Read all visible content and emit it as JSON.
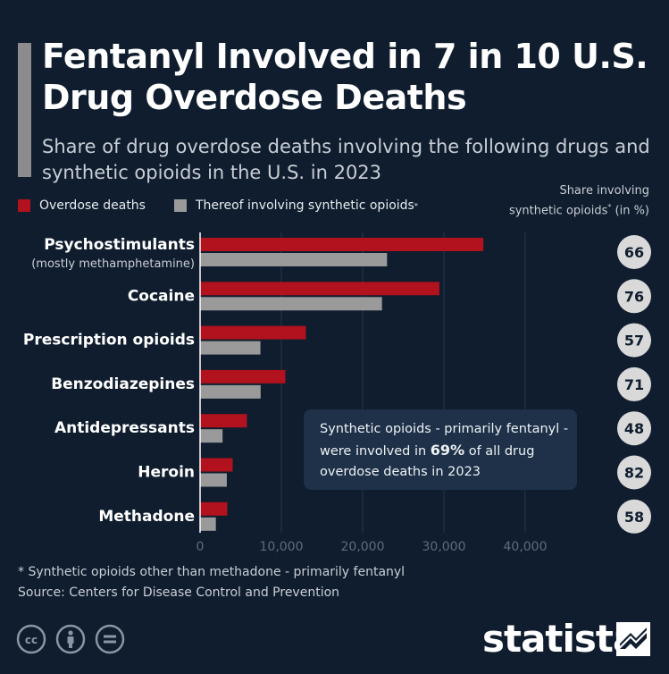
{
  "title": "Fentanyl Involved in 7 in 10 U.S. Drug Overdose Deaths",
  "subtitle": "Share of drug overdose deaths involving the following drugs and synthetic opioids in the U.S. in 2023",
  "legend": {
    "overdose_label": "Overdose deaths",
    "synthetic_label": "Thereof involving synthetic opioids",
    "synthetic_marker": "*"
  },
  "share_header": {
    "line1": "Share involving",
    "line2_prefix": "synthetic opioids",
    "marker": "*",
    "line2_suffix": " (in %)"
  },
  "callout": {
    "text_before": "Synthetic opioids - primarily fentanyl - were involved in ",
    "highlight": "69%",
    "text_after": " of all drug overdose deaths in 2023"
  },
  "footnote": "* Synthetic opioids other than methadone - primarily fentanyl",
  "source": "Source: Centers for Disease Control and Prevention",
  "brand": "statista",
  "colors": {
    "background": "#0f1d2e",
    "overdose": "#b1121d",
    "synthetic": "#9a9a9a",
    "circle": "#d9d9d9",
    "callout_bg": "#1e3148"
  },
  "icons": [
    "cc-icon",
    "attribution-icon",
    "no-derivatives-icon",
    "statista-logo-icon"
  ],
  "chart_data": {
    "type": "bar",
    "orientation": "horizontal",
    "categories": [
      "Psychostimulants",
      "Cocaine",
      "Prescription opioids",
      "Benzodiazepines",
      "Antidepressants",
      "Heroin",
      "Methadone"
    ],
    "category_sublabels": [
      "(mostly methamphetamine)",
      "",
      "",
      "",
      "",
      "",
      ""
    ],
    "series": [
      {
        "name": "Overdose deaths",
        "values": [
          34855,
          29449,
          13026,
          10495,
          5767,
          4012,
          3349
        ]
      },
      {
        "name": "Thereof involving synthetic opioids",
        "values": [
          23005,
          22381,
          7425,
          7451,
          2768,
          3290,
          1943
        ]
      }
    ],
    "share_pct": [
      66,
      76,
      57,
      71,
      48,
      82,
      58
    ],
    "xlim": [
      0,
      45000
    ],
    "xticks": [
      0,
      10000,
      20000,
      30000,
      40000
    ],
    "xtick_labels": [
      "0",
      "10,000",
      "20,000",
      "30,000",
      "40,000"
    ],
    "grid": true,
    "legend_position": "top-left"
  }
}
